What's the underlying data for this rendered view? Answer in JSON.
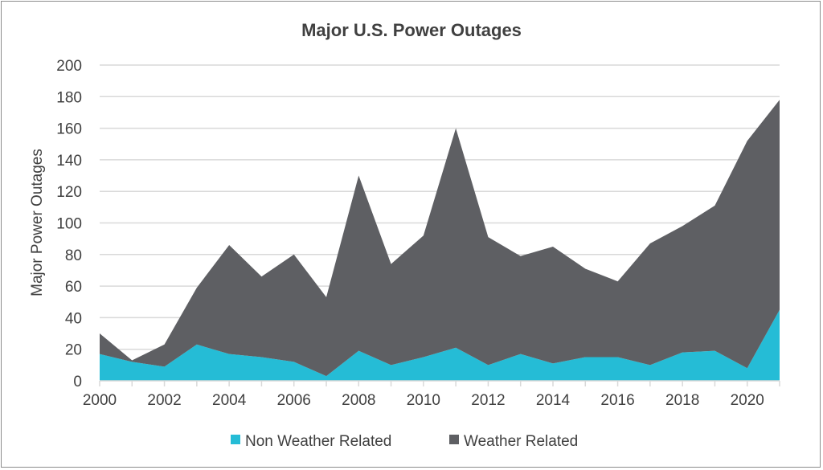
{
  "chart_data": {
    "type": "area",
    "stacked": true,
    "title": "Major U.S. Power Outages",
    "xlabel": "",
    "ylabel": "Major Power Outages",
    "ylim": [
      0,
      200
    ],
    "yticks": [
      0,
      20,
      40,
      60,
      80,
      100,
      120,
      140,
      160,
      180,
      200
    ],
    "xlim": [
      2000,
      2021
    ],
    "xticks": [
      2000,
      2002,
      2004,
      2006,
      2008,
      2010,
      2012,
      2014,
      2016,
      2018,
      2020
    ],
    "grid": true,
    "legend_position": "bottom",
    "x": [
      2000,
      2001,
      2002,
      2003,
      2004,
      2005,
      2006,
      2007,
      2008,
      2009,
      2010,
      2011,
      2012,
      2013,
      2014,
      2015,
      2016,
      2017,
      2018,
      2019,
      2020,
      2021
    ],
    "series": [
      {
        "name": "Non Weather Related",
        "color": "#25bcd6",
        "values": [
          17,
          12,
          9,
          23,
          17,
          15,
          12,
          3,
          19,
          10,
          15,
          21,
          10,
          17,
          11,
          15,
          15,
          10,
          18,
          19,
          8,
          45
        ]
      },
      {
        "name": "Weather Related",
        "color": "#5e5f63",
        "values": [
          13,
          1,
          14,
          36,
          69,
          51,
          68,
          50,
          111,
          64,
          77,
          139,
          81,
          62,
          74,
          56,
          48,
          77,
          80,
          92,
          144,
          133
        ]
      }
    ]
  }
}
